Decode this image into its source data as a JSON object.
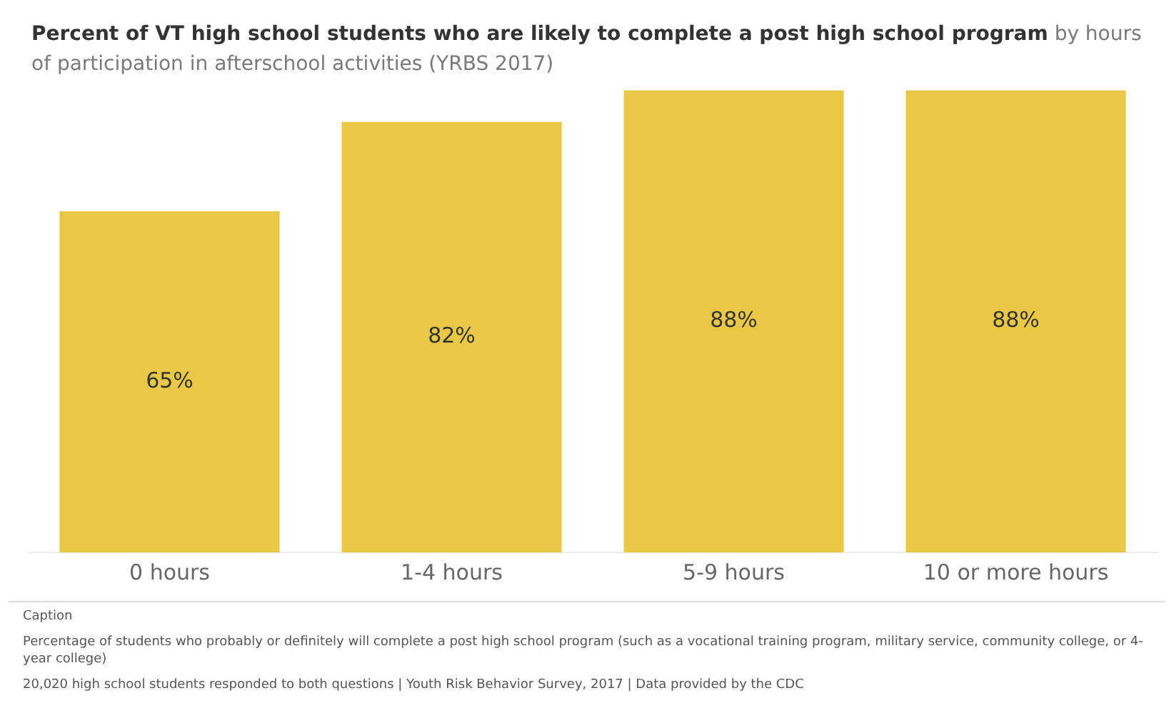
{
  "chart_data": {
    "type": "bar",
    "title": "Percent of VT high school students who are likely to complete a post high school program",
    "subtitle": "by hours of participation in afterschool activities (YRBS 2017)",
    "categories": [
      "0 hours",
      "1-4 hours",
      "5-9 hours",
      "10 or more hours"
    ],
    "values": [
      65,
      82,
      88,
      88
    ],
    "value_labels": [
      "65%",
      "82%",
      "88%",
      "88%"
    ],
    "color": "#e9c846",
    "grid": false,
    "legend": false,
    "tick_labels": "x",
    "annotations": [
      "Caption",
      "Percentage of students who probably or definitely will complete a post high school program (such as a vocational training program, military service, community college, or 4-year college)",
      "20,020 high school students responded to both questions | Youth Risk Behavior Survey, 2017 | Data provided by the CDC"
    ]
  }
}
